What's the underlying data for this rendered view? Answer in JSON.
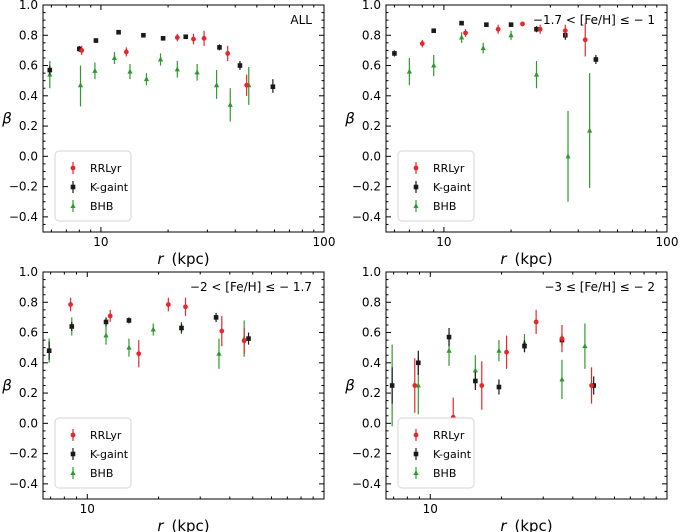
{
  "chart_data": [
    {
      "type": "scatter",
      "annotation": "ALL",
      "xscale": "log",
      "xlim": [
        5.5,
        100
      ],
      "ylim": [
        -0.5,
        1.0
      ],
      "xlabel_var": "r",
      "xlabel_unit": "(kpc)",
      "ylabel": "β",
      "xticks": [
        {
          "value": 10,
          "label": "10"
        },
        {
          "value": 100,
          "label": "100"
        }
      ],
      "yticks": [
        {
          "value": -0.4,
          "label": "−0.4"
        },
        {
          "value": -0.2,
          "label": "−0.2"
        },
        {
          "value": 0.0,
          "label": "0.0"
        },
        {
          "value": 0.2,
          "label": "0.2"
        },
        {
          "value": 0.4,
          "label": "0.4"
        },
        {
          "value": 0.6,
          "label": "0.6"
        },
        {
          "value": 0.8,
          "label": "0.8"
        },
        {
          "value": 1.0,
          "label": "1.0"
        }
      ],
      "legend": {
        "placement": "lower-left",
        "entries": [
          "RRLyr",
          "K-gaint",
          "BHB"
        ]
      },
      "series": [
        {
          "name": "RRLyr",
          "color": "#e8262b",
          "marker": "circle",
          "points": [
            {
              "x": 8.2,
              "y": 0.7,
              "lo": 0.67,
              "hi": 0.73
            },
            {
              "x": 13.0,
              "y": 0.69,
              "lo": 0.66,
              "hi": 0.72
            },
            {
              "x": 22.0,
              "y": 0.785,
              "lo": 0.76,
              "hi": 0.81
            },
            {
              "x": 26.0,
              "y": 0.775,
              "lo": 0.74,
              "hi": 0.81
            },
            {
              "x": 29.0,
              "y": 0.78,
              "lo": 0.73,
              "hi": 0.83
            },
            {
              "x": 37.0,
              "y": 0.68,
              "lo": 0.63,
              "hi": 0.73
            },
            {
              "x": 45.0,
              "y": 0.47,
              "lo": 0.4,
              "hi": 0.54
            }
          ]
        },
        {
          "name": "K-gaint",
          "color": "#1a1a1a",
          "marker": "square",
          "points": [
            {
              "x": 5.9,
              "y": 0.57,
              "lo": 0.54,
              "hi": 0.6
            },
            {
              "x": 8.0,
              "y": 0.71,
              "lo": 0.69,
              "hi": 0.73
            },
            {
              "x": 9.5,
              "y": 0.765,
              "lo": 0.75,
              "hi": 0.78
            },
            {
              "x": 12.0,
              "y": 0.82,
              "lo": 0.81,
              "hi": 0.83
            },
            {
              "x": 15.5,
              "y": 0.8,
              "lo": 0.79,
              "hi": 0.81
            },
            {
              "x": 19.0,
              "y": 0.78,
              "lo": 0.77,
              "hi": 0.79
            },
            {
              "x": 24.0,
              "y": 0.79,
              "lo": 0.78,
              "hi": 0.8
            },
            {
              "x": 34.0,
              "y": 0.72,
              "lo": 0.7,
              "hi": 0.74
            },
            {
              "x": 42.0,
              "y": 0.6,
              "lo": 0.57,
              "hi": 0.63
            },
            {
              "x": 59.0,
              "y": 0.46,
              "lo": 0.42,
              "hi": 0.51
            }
          ]
        },
        {
          "name": "BHB",
          "color": "#2e9a2e",
          "marker": "triangle",
          "points": [
            {
              "x": 5.9,
              "y": 0.54,
              "lo": 0.45,
              "hi": 0.63
            },
            {
              "x": 8.1,
              "y": 0.47,
              "lo": 0.33,
              "hi": 0.6
            },
            {
              "x": 9.4,
              "y": 0.565,
              "lo": 0.51,
              "hi": 0.62
            },
            {
              "x": 11.5,
              "y": 0.65,
              "lo": 0.61,
              "hi": 0.69
            },
            {
              "x": 13.5,
              "y": 0.56,
              "lo": 0.51,
              "hi": 0.61
            },
            {
              "x": 16.0,
              "y": 0.51,
              "lo": 0.47,
              "hi": 0.55
            },
            {
              "x": 18.5,
              "y": 0.64,
              "lo": 0.6,
              "hi": 0.68
            },
            {
              "x": 22.0,
              "y": 0.575,
              "lo": 0.52,
              "hi": 0.63
            },
            {
              "x": 27.0,
              "y": 0.555,
              "lo": 0.5,
              "hi": 0.61
            },
            {
              "x": 33.0,
              "y": 0.47,
              "lo": 0.38,
              "hi": 0.57
            },
            {
              "x": 38.0,
              "y": 0.34,
              "lo": 0.23,
              "hi": 0.45
            },
            {
              "x": 46.0,
              "y": 0.47,
              "lo": 0.34,
              "hi": 0.59
            }
          ]
        }
      ]
    },
    {
      "type": "scatter",
      "annotation": "−1.7 < [Fe/H] ≤ − 1",
      "xscale": "log",
      "xlim": [
        5.5,
        100
      ],
      "ylim": [
        -0.5,
        1.0
      ],
      "xlabel_var": "r",
      "xlabel_unit": "(kpc)",
      "ylabel": "β",
      "xticks": [
        {
          "value": 10,
          "label": "10"
        },
        {
          "value": 100,
          "label": "100"
        }
      ],
      "yticks": [
        {
          "value": -0.4,
          "label": "−0.4"
        },
        {
          "value": -0.2,
          "label": "−0.2"
        },
        {
          "value": 0.0,
          "label": "0.0"
        },
        {
          "value": 0.2,
          "label": "0.2"
        },
        {
          "value": 0.4,
          "label": "0.4"
        },
        {
          "value": 0.6,
          "label": "0.6"
        },
        {
          "value": 0.8,
          "label": "0.8"
        },
        {
          "value": 1.0,
          "label": "1.0"
        }
      ],
      "legend": {
        "placement": "lower-left",
        "entries": [
          "RRLyr",
          "K-gaint",
          "BHB"
        ]
      },
      "series": [
        {
          "name": "RRLyr",
          "color": "#e8262b",
          "marker": "circle",
          "points": [
            {
              "x": 8.0,
              "y": 0.745,
              "lo": 0.72,
              "hi": 0.77
            },
            {
              "x": 12.5,
              "y": 0.815,
              "lo": 0.79,
              "hi": 0.84
            },
            {
              "x": 17.5,
              "y": 0.84,
              "lo": 0.81,
              "hi": 0.87
            },
            {
              "x": 22.5,
              "y": 0.875,
              "lo": 0.86,
              "hi": 0.89
            },
            {
              "x": 27.0,
              "y": 0.84,
              "lo": 0.81,
              "hi": 0.87
            },
            {
              "x": 35.0,
              "y": 0.83,
              "lo": 0.79,
              "hi": 0.87
            },
            {
              "x": 43.0,
              "y": 0.77,
              "lo": 0.66,
              "hi": 0.88
            }
          ]
        },
        {
          "name": "K-gaint",
          "color": "#1a1a1a",
          "marker": "square",
          "points": [
            {
              "x": 6.0,
              "y": 0.68,
              "lo": 0.66,
              "hi": 0.7
            },
            {
              "x": 9.0,
              "y": 0.83,
              "lo": 0.82,
              "hi": 0.84
            },
            {
              "x": 12.0,
              "y": 0.88,
              "lo": 0.87,
              "hi": 0.89
            },
            {
              "x": 15.5,
              "y": 0.87,
              "lo": 0.86,
              "hi": 0.88
            },
            {
              "x": 20.0,
              "y": 0.87,
              "lo": 0.86,
              "hi": 0.88
            },
            {
              "x": 26.0,
              "y": 0.84,
              "lo": 0.82,
              "hi": 0.86
            },
            {
              "x": 35.0,
              "y": 0.8,
              "lo": 0.77,
              "hi": 0.83
            },
            {
              "x": 48.0,
              "y": 0.64,
              "lo": 0.61,
              "hi": 0.67
            }
          ]
        },
        {
          "name": "BHB",
          "color": "#2e9a2e",
          "marker": "triangle",
          "points": [
            {
              "x": 7.0,
              "y": 0.56,
              "lo": 0.47,
              "hi": 0.65
            },
            {
              "x": 9.0,
              "y": 0.6,
              "lo": 0.53,
              "hi": 0.67
            },
            {
              "x": 12.0,
              "y": 0.785,
              "lo": 0.75,
              "hi": 0.82
            },
            {
              "x": 15.0,
              "y": 0.715,
              "lo": 0.68,
              "hi": 0.75
            },
            {
              "x": 20.0,
              "y": 0.8,
              "lo": 0.77,
              "hi": 0.83
            },
            {
              "x": 26.0,
              "y": 0.54,
              "lo": 0.45,
              "hi": 0.63
            },
            {
              "x": 36.0,
              "y": 0.0,
              "lo": -0.3,
              "hi": 0.3
            },
            {
              "x": 45.0,
              "y": 0.17,
              "lo": -0.21,
              "hi": 0.55
            }
          ]
        }
      ]
    },
    {
      "type": "scatter",
      "annotation": "−2 < [Fe/H] ≤ − 1.7",
      "xscale": "log",
      "xlim": [
        6.5,
        100
      ],
      "ylim": [
        -0.5,
        1.0
      ],
      "xlabel_var": "r",
      "xlabel_unit": "(kpc)",
      "ylabel": "β",
      "xticks": [
        {
          "value": 10,
          "label": "10"
        }
      ],
      "yticks": [
        {
          "value": -0.4,
          "label": "−0.4"
        },
        {
          "value": -0.2,
          "label": "−0.2"
        },
        {
          "value": 0.0,
          "label": "0.0"
        },
        {
          "value": 0.2,
          "label": "0.2"
        },
        {
          "value": 0.4,
          "label": "0.4"
        },
        {
          "value": 0.6,
          "label": "0.6"
        },
        {
          "value": 0.8,
          "label": "0.8"
        },
        {
          "value": 1.0,
          "label": "1.0"
        }
      ],
      "legend": {
        "placement": "lower-left",
        "entries": [
          "RRLyr",
          "K-gaint",
          "BHB"
        ]
      },
      "series": [
        {
          "name": "RRLyr",
          "color": "#e8262b",
          "marker": "circle",
          "points": [
            {
              "x": 8.5,
              "y": 0.785,
              "lo": 0.74,
              "hi": 0.83
            },
            {
              "x": 12.5,
              "y": 0.71,
              "lo": 0.67,
              "hi": 0.75
            },
            {
              "x": 16.5,
              "y": 0.46,
              "lo": 0.37,
              "hi": 0.55
            },
            {
              "x": 22.0,
              "y": 0.785,
              "lo": 0.74,
              "hi": 0.83
            },
            {
              "x": 26.0,
              "y": 0.77,
              "lo": 0.71,
              "hi": 0.83
            },
            {
              "x": 37.0,
              "y": 0.61,
              "lo": 0.51,
              "hi": 0.71
            },
            {
              "x": 46.0,
              "y": 0.545,
              "lo": 0.46,
              "hi": 0.63
            }
          ]
        },
        {
          "name": "K-gaint",
          "color": "#1a1a1a",
          "marker": "square",
          "points": [
            {
              "x": 6.9,
              "y": 0.48,
              "lo": 0.42,
              "hi": 0.54
            },
            {
              "x": 8.6,
              "y": 0.64,
              "lo": 0.61,
              "hi": 0.67
            },
            {
              "x": 12.0,
              "y": 0.67,
              "lo": 0.64,
              "hi": 0.7
            },
            {
              "x": 15.0,
              "y": 0.68,
              "lo": 0.66,
              "hi": 0.7
            },
            {
              "x": 25.0,
              "y": 0.63,
              "lo": 0.6,
              "hi": 0.66
            },
            {
              "x": 35.0,
              "y": 0.7,
              "lo": 0.67,
              "hi": 0.73
            },
            {
              "x": 48.0,
              "y": 0.56,
              "lo": 0.52,
              "hi": 0.6
            }
          ]
        },
        {
          "name": "BHB",
          "color": "#2e9a2e",
          "marker": "triangle",
          "points": [
            {
              "x": 6.9,
              "y": 0.48,
              "lo": 0.4,
              "hi": 0.56
            },
            {
              "x": 8.6,
              "y": 0.64,
              "lo": 0.58,
              "hi": 0.7
            },
            {
              "x": 12.0,
              "y": 0.58,
              "lo": 0.52,
              "hi": 0.64
            },
            {
              "x": 15.0,
              "y": 0.5,
              "lo": 0.44,
              "hi": 0.56
            },
            {
              "x": 19.0,
              "y": 0.62,
              "lo": 0.58,
              "hi": 0.66
            },
            {
              "x": 25.0,
              "y": 0.63,
              "lo": 0.59,
              "hi": 0.67
            },
            {
              "x": 36.0,
              "y": 0.46,
              "lo": 0.36,
              "hi": 0.56
            },
            {
              "x": 46.0,
              "y": 0.56,
              "lo": 0.44,
              "hi": 0.68
            }
          ]
        }
      ]
    },
    {
      "type": "scatter",
      "annotation": "−3 ≤ [Fe/H] ≤ − 2",
      "xscale": "log",
      "xlim": [
        6.5,
        100
      ],
      "ylim": [
        -0.5,
        1.0
      ],
      "xlabel_var": "r",
      "xlabel_unit": "(kpc)",
      "ylabel": "β",
      "xticks": [
        {
          "value": 10,
          "label": "10"
        }
      ],
      "yticks": [
        {
          "value": -0.4,
          "label": "−0.4"
        },
        {
          "value": -0.2,
          "label": "−0.2"
        },
        {
          "value": 0.0,
          "label": "0.0"
        },
        {
          "value": 0.2,
          "label": "0.2"
        },
        {
          "value": 0.4,
          "label": "0.4"
        },
        {
          "value": 0.6,
          "label": "0.6"
        },
        {
          "value": 0.8,
          "label": "0.8"
        },
        {
          "value": 1.0,
          "label": "1.0"
        }
      ],
      "legend": {
        "placement": "lower-left",
        "entries": [
          "RRLyr",
          "K-gaint",
          "BHB"
        ]
      },
      "series": [
        {
          "name": "RRLyr",
          "color": "#e8262b",
          "marker": "circle",
          "points": [
            {
              "x": 8.6,
              "y": 0.25,
              "lo": 0.07,
              "hi": 0.43
            },
            {
              "x": 12.5,
              "y": 0.04,
              "lo": -0.09,
              "hi": 0.17
            },
            {
              "x": 16.5,
              "y": 0.25,
              "lo": 0.09,
              "hi": 0.41
            },
            {
              "x": 21.0,
              "y": 0.47,
              "lo": 0.36,
              "hi": 0.58
            },
            {
              "x": 28.0,
              "y": 0.67,
              "lo": 0.59,
              "hi": 0.75
            },
            {
              "x": 36.0,
              "y": 0.56,
              "lo": 0.47,
              "hi": 0.65
            },
            {
              "x": 48.0,
              "y": 0.25,
              "lo": 0.13,
              "hi": 0.37
            }
          ]
        },
        {
          "name": "K-gaint",
          "color": "#1a1a1a",
          "marker": "square",
          "points": [
            {
              "x": 6.9,
              "y": 0.25,
              "lo": 0.13,
              "hi": 0.37
            },
            {
              "x": 8.9,
              "y": 0.4,
              "lo": 0.32,
              "hi": 0.48
            },
            {
              "x": 12.0,
              "y": 0.57,
              "lo": 0.51,
              "hi": 0.63
            },
            {
              "x": 15.5,
              "y": 0.28,
              "lo": 0.22,
              "hi": 0.34
            },
            {
              "x": 19.5,
              "y": 0.24,
              "lo": 0.19,
              "hi": 0.29
            },
            {
              "x": 25.0,
              "y": 0.51,
              "lo": 0.47,
              "hi": 0.55
            },
            {
              "x": 36.0,
              "y": 0.55,
              "lo": 0.51,
              "hi": 0.59
            },
            {
              "x": 49.0,
              "y": 0.25,
              "lo": 0.19,
              "hi": 0.31
            }
          ]
        },
        {
          "name": "BHB",
          "color": "#2e9a2e",
          "marker": "triangle",
          "points": [
            {
              "x": 6.9,
              "y": 0.25,
              "lo": -0.02,
              "hi": 0.52
            },
            {
              "x": 8.9,
              "y": 0.25,
              "lo": 0.06,
              "hi": 0.44
            },
            {
              "x": 12.0,
              "y": 0.48,
              "lo": 0.38,
              "hi": 0.58
            },
            {
              "x": 15.5,
              "y": 0.35,
              "lo": 0.25,
              "hi": 0.45
            },
            {
              "x": 19.5,
              "y": 0.48,
              "lo": 0.41,
              "hi": 0.55
            },
            {
              "x": 25.0,
              "y": 0.53,
              "lo": 0.47,
              "hi": 0.59
            },
            {
              "x": 36.0,
              "y": 0.29,
              "lo": 0.16,
              "hi": 0.42
            },
            {
              "x": 45.0,
              "y": 0.51,
              "lo": 0.36,
              "hi": 0.66
            }
          ]
        }
      ]
    }
  ]
}
